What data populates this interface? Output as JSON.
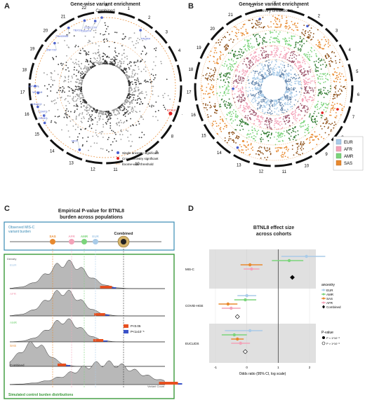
{
  "panels": {
    "a": {
      "letter": "A",
      "title": "Gene-wise variant enrichment",
      "subtitle": "Combined",
      "genes": [
        "C8orf74",
        "CCDC178",
        "PAQR4",
        "FAM209B",
        "ZNF720",
        "MPV17L",
        "WDR19",
        "AHNAK2",
        "LCMT2",
        "OR4K1",
        "MKX",
        "TBX19",
        "BTNL8"
      ],
      "legend": [
        "Single ancestry significant",
        "Cross-ancestry significant",
        "Exome-wide threshold"
      ],
      "chromosomes": [
        "1",
        "2",
        "3",
        "4",
        "5",
        "6",
        "7",
        "8",
        "9",
        "10",
        "11",
        "12",
        "13",
        "14",
        "15",
        "16",
        "17",
        "18",
        "19",
        "20",
        "21",
        "22",
        "X"
      ]
    },
    "b": {
      "letter": "B",
      "title": "Gene-wise variant enrichment",
      "subtitle": "Ancestry breakdown",
      "legend": [
        "EUR",
        "AFR",
        "AMR",
        "SAS"
      ],
      "colors": {
        "EUR": "#a9cbe8",
        "AFR": "#f3a2b8",
        "AMR": "#7bd47b",
        "SAS": "#e8892e"
      }
    },
    "c": {
      "letter": "C",
      "title": "Empirical P-value for BTNL8",
      "title2": "burden across populations",
      "observed_label": "Observed MIS-C",
      "observed_label2": "variant burden",
      "pops": [
        "SAS",
        "AFR",
        "AMR",
        "EUR",
        "Combined"
      ],
      "density_label": "Density",
      "variant_count_label": "Variant Count",
      "legend": [
        "P<0.05",
        "P<1x10⁻⁶"
      ],
      "footer": "Simulated control burden distributions"
    },
    "d": {
      "letter": "D",
      "title": "BTNL8 effect size",
      "title2": "across cohorts",
      "cohorts": [
        "MIS-C",
        "COVID-HGE",
        "EUCLIDS"
      ],
      "xlabel": "Odds ratio (95% CI, log scale)",
      "xticks": [
        "-1",
        "0",
        "1",
        "2"
      ],
      "legend_title": "ancestry",
      "legend_items": [
        "EUR",
        "AMR",
        "SAS",
        "AFR",
        "Combined"
      ],
      "pvalue_title": "P-value",
      "pvalue_items": [
        "P < 1*10⁻⁶",
        "P > 1*10⁻⁶"
      ]
    }
  },
  "chart_data": {
    "type": "scatter",
    "title": "BTNL8 effect size across cohorts",
    "xlabel": "Odds ratio (95% CI, log scale)",
    "xlim": [
      -1.2,
      2.2
    ],
    "series": [
      {
        "name": "EUR",
        "values": [
          {
            "cohort": "MIS-C",
            "est": 1.9,
            "lo": 1.1,
            "hi": 2.5
          },
          {
            "cohort": "COVID-HGE",
            "est": 0.0,
            "lo": -0.3,
            "hi": 0.3
          },
          {
            "cohort": "EUCLIDS",
            "est": 0.1,
            "lo": -0.7,
            "hi": 0.5
          }
        ]
      },
      {
        "name": "AMR",
        "values": [
          {
            "cohort": "MIS-C",
            "est": 1.35,
            "lo": 0.8,
            "hi": 1.8
          },
          {
            "cohort": "COVID-HGE",
            "est": -0.05,
            "lo": -0.4,
            "hi": 0.3
          },
          {
            "cohort": "EUCLIDS",
            "est": -0.4,
            "lo": -0.8,
            "hi": 0.0
          }
        ]
      },
      {
        "name": "SAS",
        "values": [
          {
            "cohort": "MIS-C",
            "est": 0.1,
            "lo": -0.2,
            "hi": 0.5
          },
          {
            "cohort": "COVID-HGE",
            "est": -0.6,
            "lo": -0.9,
            "hi": -0.3
          },
          {
            "cohort": "EUCLIDS",
            "est": -0.3,
            "lo": -0.5,
            "hi": -0.1
          }
        ]
      },
      {
        "name": "AFR",
        "values": [
          {
            "cohort": "MIS-C",
            "est": 0.15,
            "lo": -0.1,
            "hi": 0.4
          },
          {
            "cohort": "COVID-HGE",
            "est": -0.5,
            "lo": -0.8,
            "hi": -0.2
          },
          {
            "cohort": "EUCLIDS",
            "est": -0.2,
            "lo": -0.5,
            "hi": 0.1
          }
        ]
      },
      {
        "name": "Combined",
        "values": [
          {
            "cohort": "MIS-C",
            "est": 1.45
          },
          {
            "cohort": "COVID-HGE",
            "est": -0.3
          },
          {
            "cohort": "EUCLIDS",
            "est": -0.05
          }
        ]
      }
    ]
  }
}
